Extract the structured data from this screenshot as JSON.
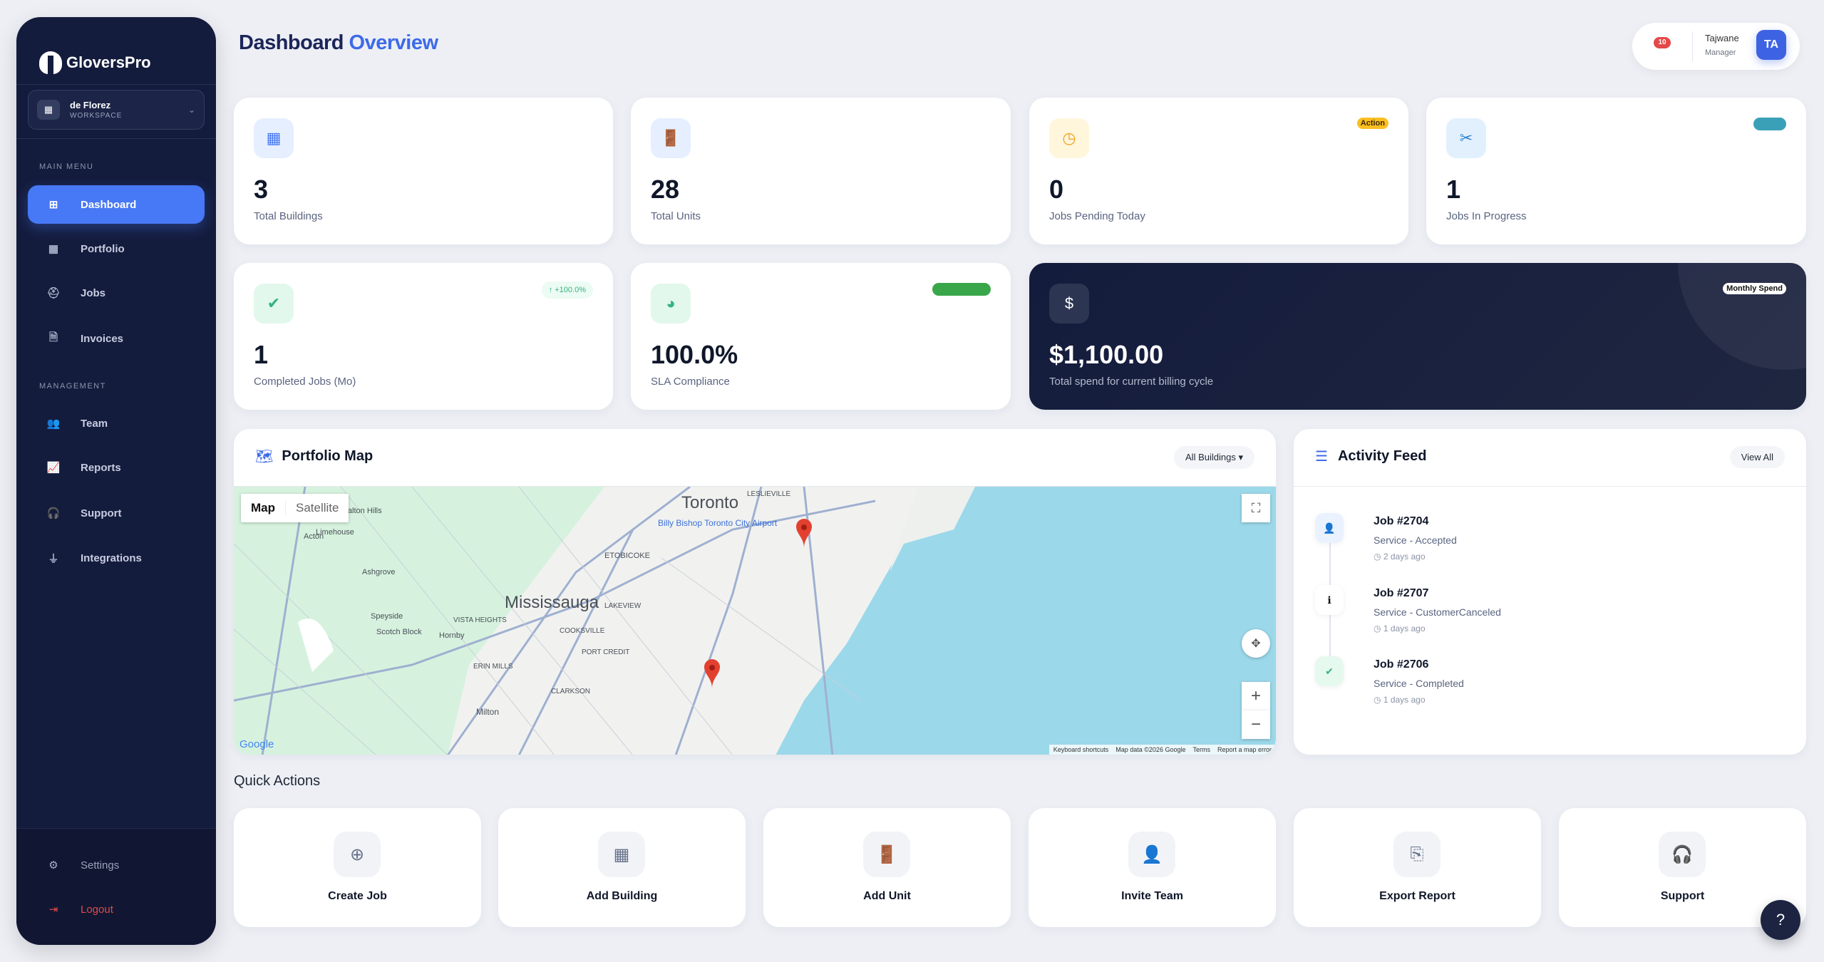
{
  "app": {
    "brand": "GloversPro"
  },
  "workspace": {
    "name": "de Florez",
    "label": "WORKSPACE"
  },
  "sidebar": {
    "main_menu_label": "MAIN MENU",
    "management_label": "MANAGEMENT",
    "main_items": [
      {
        "label": "Dashboard",
        "icon": "grid-icon",
        "active": true
      },
      {
        "label": "Portfolio",
        "icon": "building-icon"
      },
      {
        "label": "Jobs",
        "icon": "hard-hat-icon"
      },
      {
        "label": "Invoices",
        "icon": "invoice-icon"
      }
    ],
    "management_items": [
      {
        "label": "Team",
        "icon": "users-icon"
      },
      {
        "label": "Reports",
        "icon": "chart-line-icon"
      },
      {
        "label": "Support",
        "icon": "headset-icon"
      },
      {
        "label": "Integrations",
        "icon": "plug-icon"
      }
    ],
    "settings_label": "Settings",
    "logout_label": "Logout"
  },
  "header": {
    "title_part1": "Dashboard",
    "title_part2": "Overview"
  },
  "user": {
    "notifications": "10",
    "name": "Tajwane",
    "role": "Manager",
    "initials": "TA"
  },
  "stats": [
    {
      "value": "3",
      "label": "Total Buildings",
      "icon": "building-icon"
    },
    {
      "value": "28",
      "label": "Total Units",
      "icon": "door-icon"
    },
    {
      "value": "0",
      "label": "Jobs Pending Today",
      "icon": "clock-icon",
      "badge": "Action"
    },
    {
      "value": "1",
      "label": "Jobs In Progress",
      "icon": "tools-icon"
    },
    {
      "value": "1",
      "label": "Completed Jobs (Mo)",
      "icon": "check-circle-icon",
      "badge": "↑ +100.0%"
    },
    {
      "value": "100.0%",
      "label": "SLA Compliance",
      "icon": "pie-chart-icon"
    },
    {
      "value": "$1,100.00",
      "label": "Total spend for current billing cycle",
      "icon": "dollar-icon",
      "badge": "Monthly Spend"
    }
  ],
  "map": {
    "title": "Portfolio Map",
    "filter": "All Buildings",
    "type_tabs": [
      "Map",
      "Satellite"
    ],
    "labels": {
      "toronto": "Toronto",
      "mississauga": "Mississauga",
      "airport": "Billy Bishop Toronto City Airport",
      "etobicoke": "ETOBICOKE",
      "milton": "Milton",
      "acton": "Acton",
      "halton": "Halton Hills",
      "lakeview": "LAKEVIEW",
      "clarkson": "CLARKSON",
      "cooksville": "COOKSVILLE",
      "erin_mills": "ERIN MILLS",
      "leslieville": "LESLIEVILLE",
      "speyside": "Speyside",
      "scotch": "Scotch Block",
      "hornby": "Hornby",
      "ashgrove": "Ashgrove",
      "limehouse": "Limehouse",
      "port_credit": "PORT CREDIT",
      "vista": "VISTA HEIGHTS",
      "google": "Google"
    },
    "footer": [
      "Keyboard shortcuts",
      "Map data ©2026 Google",
      "Terms",
      "Report a map error"
    ],
    "pins": 2
  },
  "activity": {
    "title": "Activity Feed",
    "view_all": "View All",
    "items": [
      {
        "title": "Job #2704",
        "status": "Service - Accepted",
        "time": "2 days ago",
        "icon": "user-check-icon"
      },
      {
        "title": "Job #2707",
        "status": "Service - CustomerCanceled",
        "time": "1 days ago",
        "icon": "info-icon"
      },
      {
        "title": "Job #2706",
        "status": "Service - Completed",
        "time": "1 days ago",
        "icon": "check-circle-icon"
      }
    ]
  },
  "quick_actions": {
    "title": "Quick Actions",
    "items": [
      {
        "label": "Create Job",
        "icon": "plus-circle-icon"
      },
      {
        "label": "Add Building",
        "icon": "building-icon"
      },
      {
        "label": "Add Unit",
        "icon": "door-icon"
      },
      {
        "label": "Invite Team",
        "icon": "user-plus-icon"
      },
      {
        "label": "Export Report",
        "icon": "file-export-icon"
      },
      {
        "label": "Support",
        "icon": "headset-icon"
      }
    ]
  },
  "help": "?",
  "colors": {
    "accent": "#4778f5",
    "sidebar": "#141c3d",
    "success": "#34b47e",
    "warning": "#f5a623",
    "danger": "#e54848"
  }
}
